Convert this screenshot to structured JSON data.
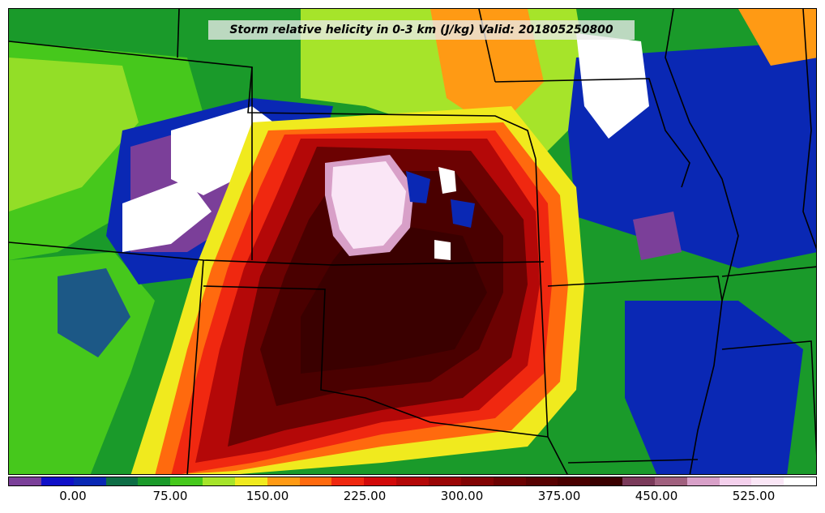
{
  "title": "Storm relative helicity in 0-3 km (J/kg) Valid: 201805250800",
  "colorbar": {
    "ticks": [
      "0.00",
      "75.00",
      "150.00",
      "225.00",
      "300.00",
      "375.00",
      "450.00",
      "525.00"
    ],
    "colors": [
      "#7b3f99",
      "#1010c8",
      "#0a28b4",
      "#0e6e46",
      "#1a9a2a",
      "#46c81c",
      "#a6e42a",
      "#f0ea1e",
      "#ff9a14",
      "#ff6a0e",
      "#f02810",
      "#d20a0a",
      "#b40808",
      "#9a0606",
      "#820404",
      "#6c0202",
      "#580202",
      "#4a0000",
      "#3a0000",
      "#7a3a5a",
      "#a0607e",
      "#d8a0c8",
      "#f4d0ec",
      "#fae6f6",
      "#ffffff"
    ]
  },
  "legend_colors": {
    "very_high_helicity": "#fae6f6",
    "high_helicity": "#5a0202",
    "moderate_helicity": "#f02810",
    "low_helicity": "#1a9a2a",
    "negative_helicity": "#1010c8"
  }
}
